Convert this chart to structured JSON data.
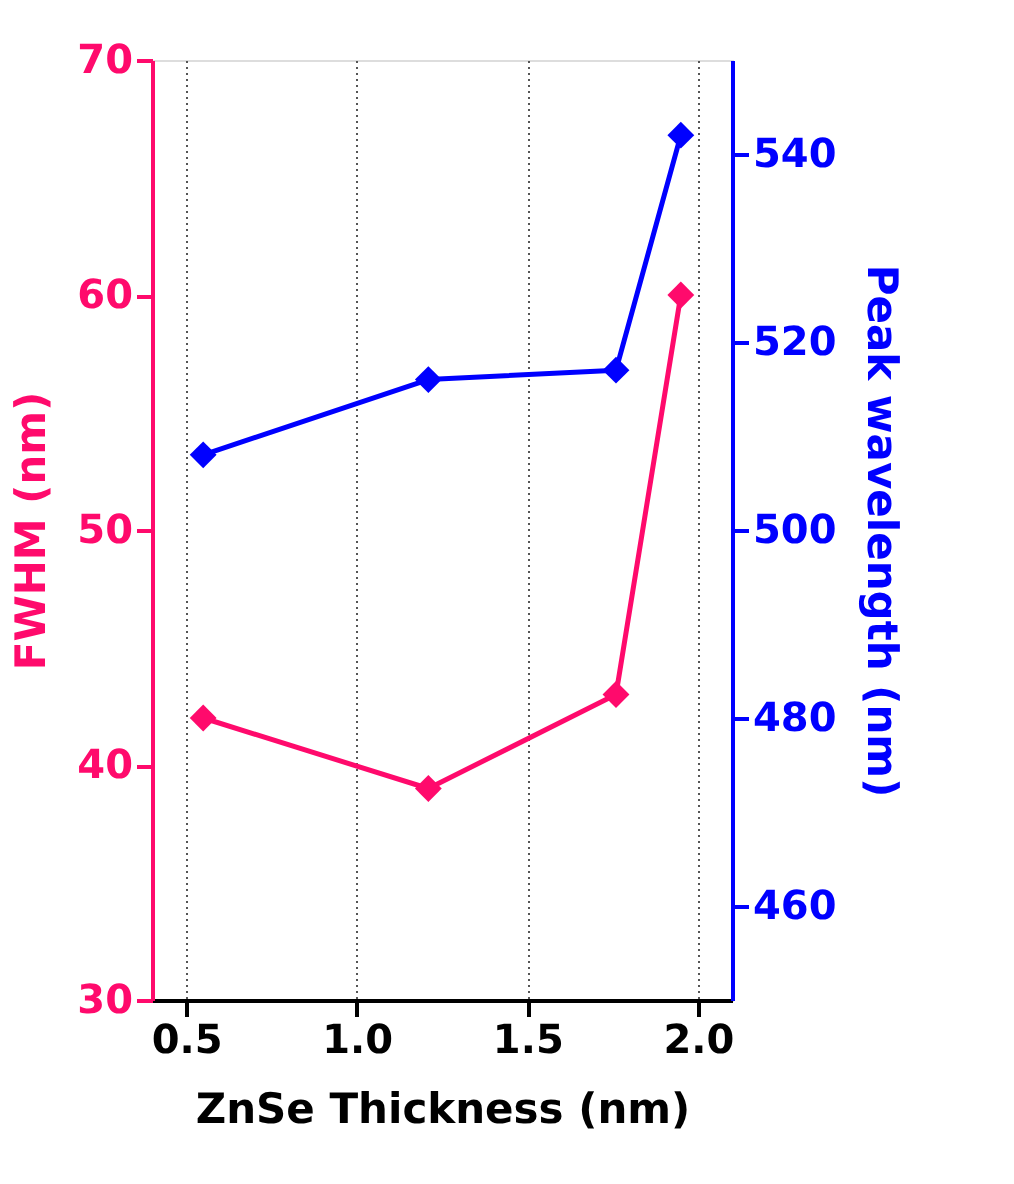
{
  "chart_data": {
    "type": "line",
    "xlabel": "ZnSe Thickness (nm)",
    "ylabel": "FWHM (nm)",
    "y2label": "Peak wavelength (nm)",
    "x": [
      0.55,
      1.21,
      1.76,
      1.95
    ],
    "series": [
      {
        "color": "#ff0a6c",
        "values": [
          42,
          39,
          43,
          60
        ]
      },
      {
        "color": "#0000ff",
        "values": [
          508,
          516,
          517,
          542
        ],
        "axis": "y2"
      }
    ],
    "xlim": [
      0.4,
      2.1
    ],
    "xticks": [
      0.5,
      {
        "value": 1,
        "label": "1.0"
      },
      1.5,
      {
        "value": 2,
        "label": "2.0"
      }
    ],
    "ylim": [
      30,
      70
    ],
    "yticks": [
      30,
      40,
      50,
      60,
      70
    ],
    "y2lim": [
      450,
      550
    ],
    "y2ticks": [
      460,
      480,
      500,
      520,
      540
    ],
    "grid": "x",
    "marker": "diamond",
    "line_style": "solid"
  }
}
